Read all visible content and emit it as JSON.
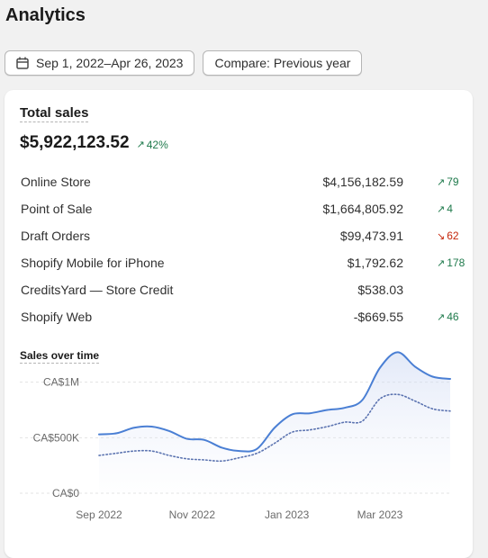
{
  "page": {
    "title": "Analytics"
  },
  "toolbar": {
    "date_range": "Sep 1, 2022–Apr 26, 2023",
    "compare": "Compare: Previous year",
    "calendar_icon": "calendar-icon"
  },
  "card": {
    "title": "Total sales",
    "total": "$5,922,123.52",
    "total_change": "42%",
    "rows": [
      {
        "name": "Online Store",
        "value": "$4,156,182.59",
        "change": "79",
        "direction": "up"
      },
      {
        "name": "Point of Sale",
        "value": "$1,664,805.92",
        "change": "4",
        "direction": "up"
      },
      {
        "name": "Draft Orders",
        "value": "$99,473.91",
        "change": "62",
        "direction": "down"
      },
      {
        "name": "Shopify Mobile for iPhone",
        "value": "$1,792.62",
        "change": "178",
        "direction": "up"
      },
      {
        "name": "CreditsYard — Store Credit",
        "value": "$538.03",
        "change": "",
        "direction": "none"
      },
      {
        "name": "Shopify Web",
        "value": "-$669.55",
        "change": "46",
        "direction": "up"
      }
    ],
    "colors": {
      "up": "#1f7a4c",
      "down": "#c5280c"
    }
  },
  "chart_data": {
    "type": "line",
    "title": "Sales over time",
    "x_tick_labels": [
      "Sep 2022",
      "Nov 2022",
      "Jan 2023",
      "Mar 2023"
    ],
    "y_tick_labels": [
      "CA$0",
      "CA$500K",
      "CA$1M"
    ],
    "ylim": [
      0,
      1200000
    ],
    "x": [
      0,
      1,
      2,
      3,
      4,
      5,
      6,
      7,
      8,
      9,
      10,
      11,
      12,
      13,
      14,
      15,
      16,
      17,
      18,
      19,
      20
    ],
    "series": [
      {
        "values": [
          530000,
          540000,
          590000,
          600000,
          560000,
          490000,
          480000,
          410000,
          380000,
          400000,
          590000,
          710000,
          720000,
          750000,
          770000,
          840000,
          1130000,
          1270000,
          1140000,
          1050000,
          1030000
        ],
        "color": "#4a7fd4",
        "style": "solid"
      },
      {
        "values": [
          340000,
          360000,
          380000,
          380000,
          340000,
          310000,
          300000,
          290000,
          320000,
          360000,
          450000,
          550000,
          570000,
          600000,
          640000,
          650000,
          850000,
          890000,
          830000,
          760000,
          740000
        ],
        "color": "#5b73b0",
        "style": "dotted"
      }
    ],
    "grid": true,
    "legend": "none"
  }
}
